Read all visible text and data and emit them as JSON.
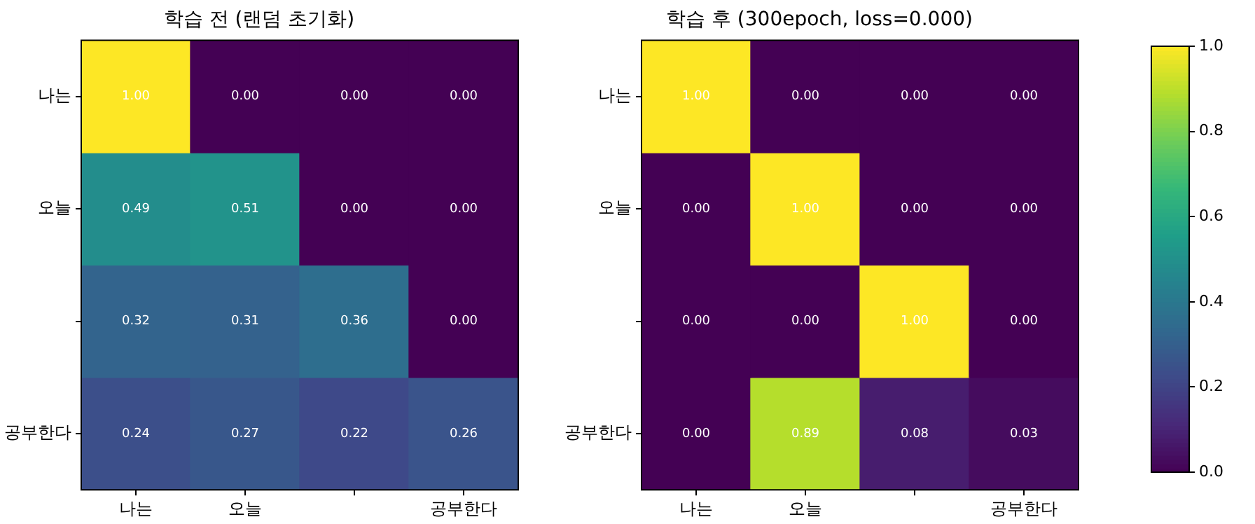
{
  "chart_data": [
    {
      "type": "heatmap",
      "title": "학습 전 (랜덤 초기화)",
      "categories": [
        "나는",
        "오늘",
        null,
        "공부한다"
      ],
      "y_categories": [
        "나는",
        "오늘",
        null,
        "공부한다"
      ],
      "cells": [
        [
          1.0,
          0.0,
          0.0,
          0.0
        ],
        [
          0.49,
          0.51,
          0.0,
          0.0
        ],
        [
          0.32,
          0.31,
          0.36,
          0.0
        ],
        [
          0.24,
          0.27,
          0.22,
          0.26
        ]
      ],
      "cell_labels": [
        [
          "1.00",
          "0.00",
          "0.00",
          "0.00"
        ],
        [
          "0.49",
          "0.51",
          "0.00",
          "0.00"
        ],
        [
          "0.32",
          "0.31",
          "0.36",
          "0.00"
        ],
        [
          "0.24",
          "0.27",
          "0.22",
          "0.26"
        ]
      ]
    },
    {
      "type": "heatmap",
      "title": "학습 후 (300epoch, loss=0.000)",
      "categories": [
        "나는",
        "오늘",
        null,
        "공부한다"
      ],
      "y_categories": [
        "나는",
        "오늘",
        null,
        "공부한다"
      ],
      "cells": [
        [
          1.0,
          0.0,
          0.0,
          0.0
        ],
        [
          0.0,
          1.0,
          0.0,
          0.0
        ],
        [
          0.0,
          0.0,
          1.0,
          0.0
        ],
        [
          0.0,
          0.89,
          0.08,
          0.03
        ]
      ],
      "cell_labels": [
        [
          "1.00",
          "0.00",
          "0.00",
          "0.00"
        ],
        [
          "0.00",
          "1.00",
          "0.00",
          "0.00"
        ],
        [
          "0.00",
          "0.00",
          "1.00",
          "0.00"
        ],
        [
          "0.00",
          "0.89",
          "0.08",
          "0.03"
        ]
      ],
      "clim": [
        0,
        1
      ],
      "cticks": [
        {
          "value": 0,
          "label": "0.0"
        },
        {
          "value": 0.2,
          "label": "0.2"
        },
        {
          "value": 0.4,
          "label": "0.4"
        },
        {
          "value": 0.6,
          "label": "0.6"
        },
        {
          "value": 0.8,
          "label": "0.8"
        },
        {
          "value": 1,
          "label": "1.0"
        }
      ]
    }
  ]
}
